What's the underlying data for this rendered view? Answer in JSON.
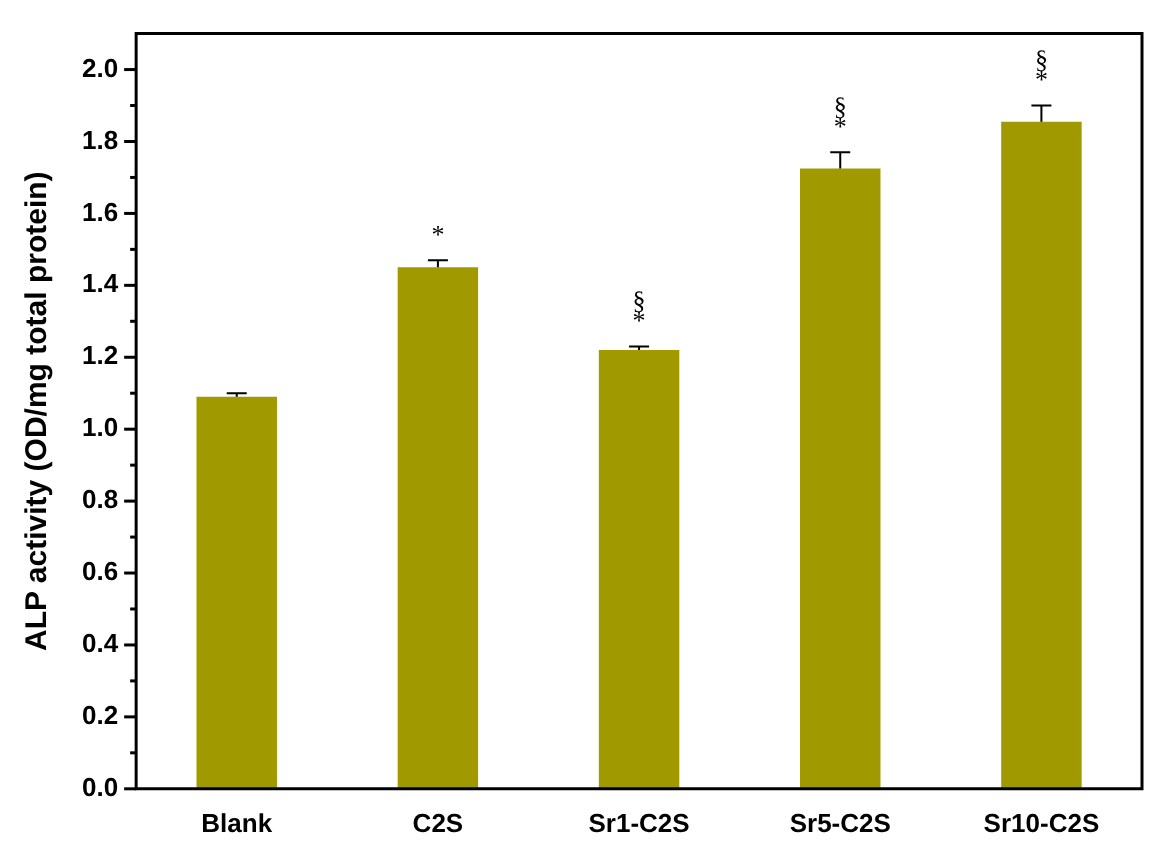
{
  "chart_data": {
    "type": "bar",
    "ylabel": "ALP activity (OD/mg total protein)",
    "categories": [
      "Blank",
      "C2S",
      "Sr1-C2S",
      "Sr5-C2S",
      "Sr10-C2S"
    ],
    "values": [
      1.09,
      1.45,
      1.22,
      1.725,
      1.855
    ],
    "errors": [
      [
        1.09,
        1.1
      ],
      [
        1.45,
        1.47
      ],
      [
        1.22,
        1.23
      ],
      [
        1.725,
        1.77
      ],
      [
        1.855,
        1.9
      ]
    ],
    "color": "#a09a00",
    "ylim": [
      0,
      2.1
    ],
    "yticks": [
      {
        "value": 0,
        "label": "0.0"
      },
      {
        "value": 0.1,
        "label": null
      },
      0.2,
      {
        "value": 0.3,
        "label": null
      },
      0.4,
      {
        "value": 0.5,
        "label": null
      },
      0.6,
      {
        "value": 0.7,
        "label": null
      },
      0.8,
      {
        "value": 0.9,
        "label": null
      },
      {
        "value": 1,
        "label": "1.0"
      },
      {
        "value": 1.1,
        "label": null
      },
      1.2,
      {
        "value": 1.3,
        "label": null
      },
      1.4,
      {
        "value": 1.5,
        "label": null
      },
      1.6,
      {
        "value": 1.7,
        "label": null
      },
      1.8,
      {
        "value": 1.9,
        "label": null
      },
      {
        "value": 2,
        "label": "2.0"
      }
    ],
    "grid": false,
    "legend": false,
    "annotations": [
      {
        "text": "*",
        "x": "C2S",
        "y": 1.45
      },
      {
        "text": "*",
        "x": "Sr1-C2S",
        "y": 1.22
      },
      {
        "text": "§",
        "x": "Sr1-C2S",
        "y": 1.22
      },
      {
        "text": "*",
        "x": "Sr5-C2S",
        "y": 1.725
      },
      {
        "text": "§",
        "x": "Sr5-C2S",
        "y": 1.725
      },
      {
        "text": "*",
        "x": "Sr10-C2S",
        "y": 1.855
      },
      {
        "text": "§",
        "x": "Sr10-C2S",
        "y": 1.855
      }
    ]
  }
}
